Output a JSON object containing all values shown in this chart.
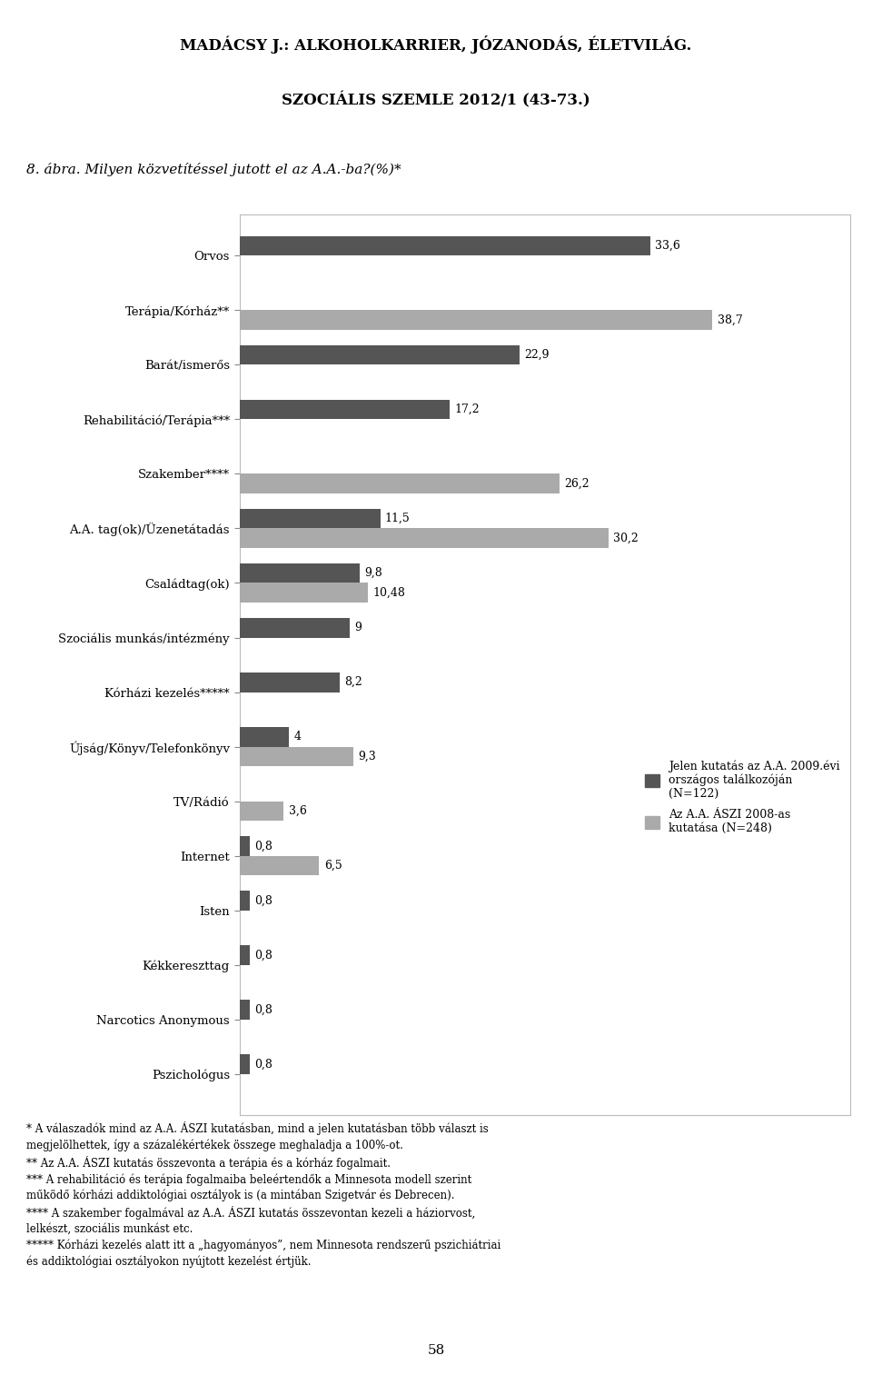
{
  "header_line1": "MADÁCSY J.: ALKOHOLKARRIER, JÓZANODÁS, ÉLETVILÁG.",
  "header_line2": "SZOCIÁLIS SZEMLE 2012/1 (43-73.)",
  "subtitle": "8. ábra. Milyen közvetítéssel jutott el az A.A.-ba?(%)*",
  "categories": [
    "Orvos",
    "Terápia/Kórház**",
    "Barát/ismerős",
    "Rehabilitáció/Terápia***",
    "Szakember****",
    "A.A. tag(ok)/Üzenetátadás",
    "Családtag(ok)",
    "Szociális munkás/intézmény",
    "Kórházi kezelés*****",
    "Újság/Könyv/Telefonkönyv",
    "TV/Rádió",
    "Internet",
    "Isten",
    "Kékkereszttag",
    "Narcotics Anonymous",
    "Pszichológus"
  ],
  "series1_values": [
    33.6,
    null,
    22.9,
    17.2,
    null,
    11.5,
    9.8,
    9.0,
    8.2,
    4.0,
    null,
    0.8,
    0.8,
    0.8,
    0.8,
    0.8
  ],
  "series2_values": [
    null,
    38.7,
    null,
    null,
    26.2,
    30.2,
    10.48,
    null,
    null,
    9.3,
    3.6,
    6.5,
    null,
    null,
    null,
    null
  ],
  "series1_label": "Jelen kutatás az A.A. 2009.évi\nországos találkozóján\n(N=122)",
  "series2_label": "Az A.A. ÁSZI 2008-as\nkutatása (N=248)",
  "series1_color": "#555555",
  "series2_color": "#aaaaaa",
  "footnotes": [
    "* A válaszadók mind az A.A. ÁSZI kutatásban, mind a jelen kutatásban több választ is",
    "megjelölhettek, így a százalékértékek összege meghaladja a 100%-ot.",
    "** Az A.A. ÁSZI kutatás összevonta a terápia és a kórház fogalmait.",
    "*** A rehabilitáció és terápia fogalmaiba beleértendők a Minnesota modell szerint",
    "működő kórházi addiktológiai osztályok is (a mintában Szigetvár és Debrecen).",
    "**** A szakember fogalmával az A.A. ÁSZI kutatás összevontan kezeli a háziorvost,",
    "lelkészt, szociális munkást etc.",
    "***** Kórházi kezelés alatt itt a „hagyományos”, nem Minnesota rendszerű pszichiátriai",
    "és addiktológiai osztályokon nyújtott kezelést értjük."
  ],
  "page_number": "58"
}
